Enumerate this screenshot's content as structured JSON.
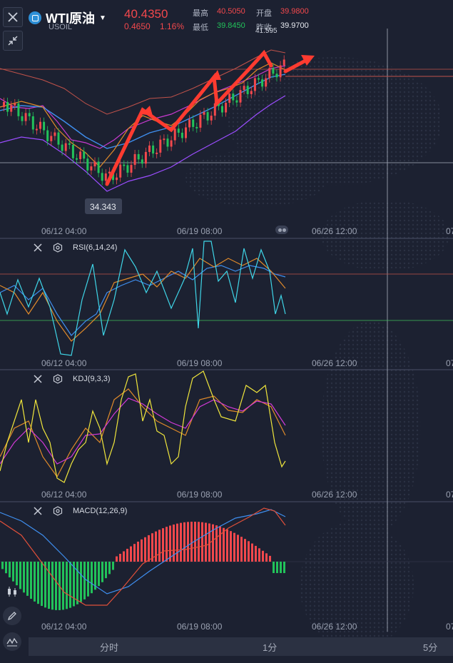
{
  "header": {
    "symbol": "WTI原油",
    "code": "USOIL",
    "price": "40.4350",
    "change": "0.4650",
    "change_pct": "1.16%",
    "high_label": "最高",
    "high": "40.5050",
    "open_label": "开盘",
    "open": "39.9800",
    "low_label": "最低",
    "low": "39.8450",
    "prev_close_label": "昨收",
    "prev_close": "39.9700"
  },
  "main_chart": {
    "max_marker": "41.595",
    "min_marker": "34.343",
    "time_labels": [
      "06/12 04:00",
      "06/19 08:00",
      "06/26 12:00",
      "07"
    ]
  },
  "rsi_panel": {
    "title": "RSI(6,14,24)",
    "time_labels": [
      "06/12 04:00",
      "06/19 08:00",
      "06/26 12:00",
      "07"
    ]
  },
  "kdj_panel": {
    "title": "KDJ(9,3,3)",
    "time_labels": [
      "06/12 04:00",
      "06/19 08:00",
      "06/26 12:00",
      "07"
    ]
  },
  "macd_panel": {
    "title": "MACD(12,26,9)",
    "time_labels": [
      "06/12 04:00",
      "06/19 08:00",
      "06/26 12:00",
      "07"
    ]
  },
  "bottom_bar": {
    "intervals": [
      "分时",
      "1分",
      "5分"
    ]
  },
  "icons": {
    "close": "close-icon",
    "collapse": "collapse-arrows-icon",
    "settings": "settings-hexagon-icon",
    "candles": "candlestick-icon",
    "pencil": "pencil-icon",
    "indicator": "indicator-wave-icon"
  },
  "colors": {
    "background": "#1c2131",
    "up": "#f2484c",
    "down": "#22c25a",
    "arrow": "#ff3b30",
    "ma_blue": "#3f8ff0",
    "boll_purple": "#9b4dff"
  }
}
